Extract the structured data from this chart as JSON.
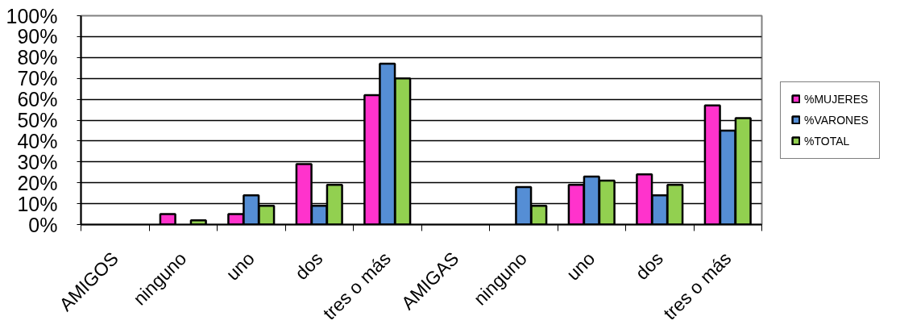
{
  "chart_data": {
    "type": "bar",
    "categories": [
      "AMIGOS",
      "ninguno",
      "uno",
      "dos",
      "tres o más",
      "AMIGAS",
      "ninguno",
      "uno",
      "dos",
      "tres o más"
    ],
    "series": [
      {
        "name": "%MUJERES",
        "color": "#ff33cc",
        "values": [
          null,
          5,
          5,
          29,
          62,
          null,
          null,
          19,
          24,
          57
        ]
      },
      {
        "name": "%VARONES",
        "color": "#558ed5",
        "values": [
          null,
          null,
          14,
          9,
          77,
          null,
          18,
          23,
          14,
          45
        ]
      },
      {
        "name": "%TOTAL",
        "color": "#92d050",
        "values": [
          null,
          2,
          9,
          19,
          70,
          null,
          9,
          21,
          19,
          51
        ]
      }
    ],
    "ylim": [
      0,
      100
    ],
    "yticks": [
      {
        "value": 0,
        "label": "0%"
      },
      {
        "value": 10,
        "label": "10%"
      },
      {
        "value": 20,
        "label": "20%"
      },
      {
        "value": 30,
        "label": "30%"
      },
      {
        "value": 40,
        "label": "40%"
      },
      {
        "value": 50,
        "label": "50%"
      },
      {
        "value": 60,
        "label": "60%"
      },
      {
        "value": 70,
        "label": "70%"
      },
      {
        "value": 80,
        "label": "80%"
      },
      {
        "value": 90,
        "label": "90%"
      },
      {
        "value": 100,
        "label": "100%"
      }
    ],
    "grid": "y",
    "legend": "right"
  }
}
